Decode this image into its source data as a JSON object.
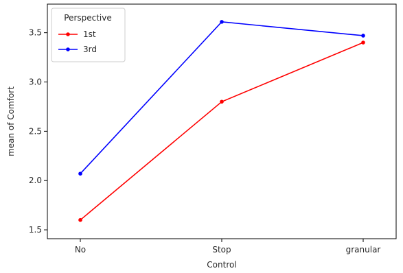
{
  "chart_data": {
    "type": "line",
    "categories": [
      "No",
      "Stop",
      "granular"
    ],
    "series": [
      {
        "name": "1st",
        "values": [
          1.6,
          2.8,
          3.4
        ],
        "color": "#ff0000"
      },
      {
        "name": "3rd",
        "values": [
          2.07,
          3.61,
          3.47
        ],
        "color": "#0000ff"
      }
    ],
    "xlabel": "Control",
    "ylabel": "mean of Comfort",
    "ylim": [
      1.41,
      3.79
    ],
    "yticks": [
      1.5,
      2.0,
      2.5,
      3.0,
      3.5
    ],
    "ytick_labels": [
      "1.5",
      "2.0",
      "2.5",
      "3.0",
      "3.5"
    ],
    "grid": false,
    "legend": {
      "title": "Perspective",
      "placement": "top-left"
    }
  }
}
